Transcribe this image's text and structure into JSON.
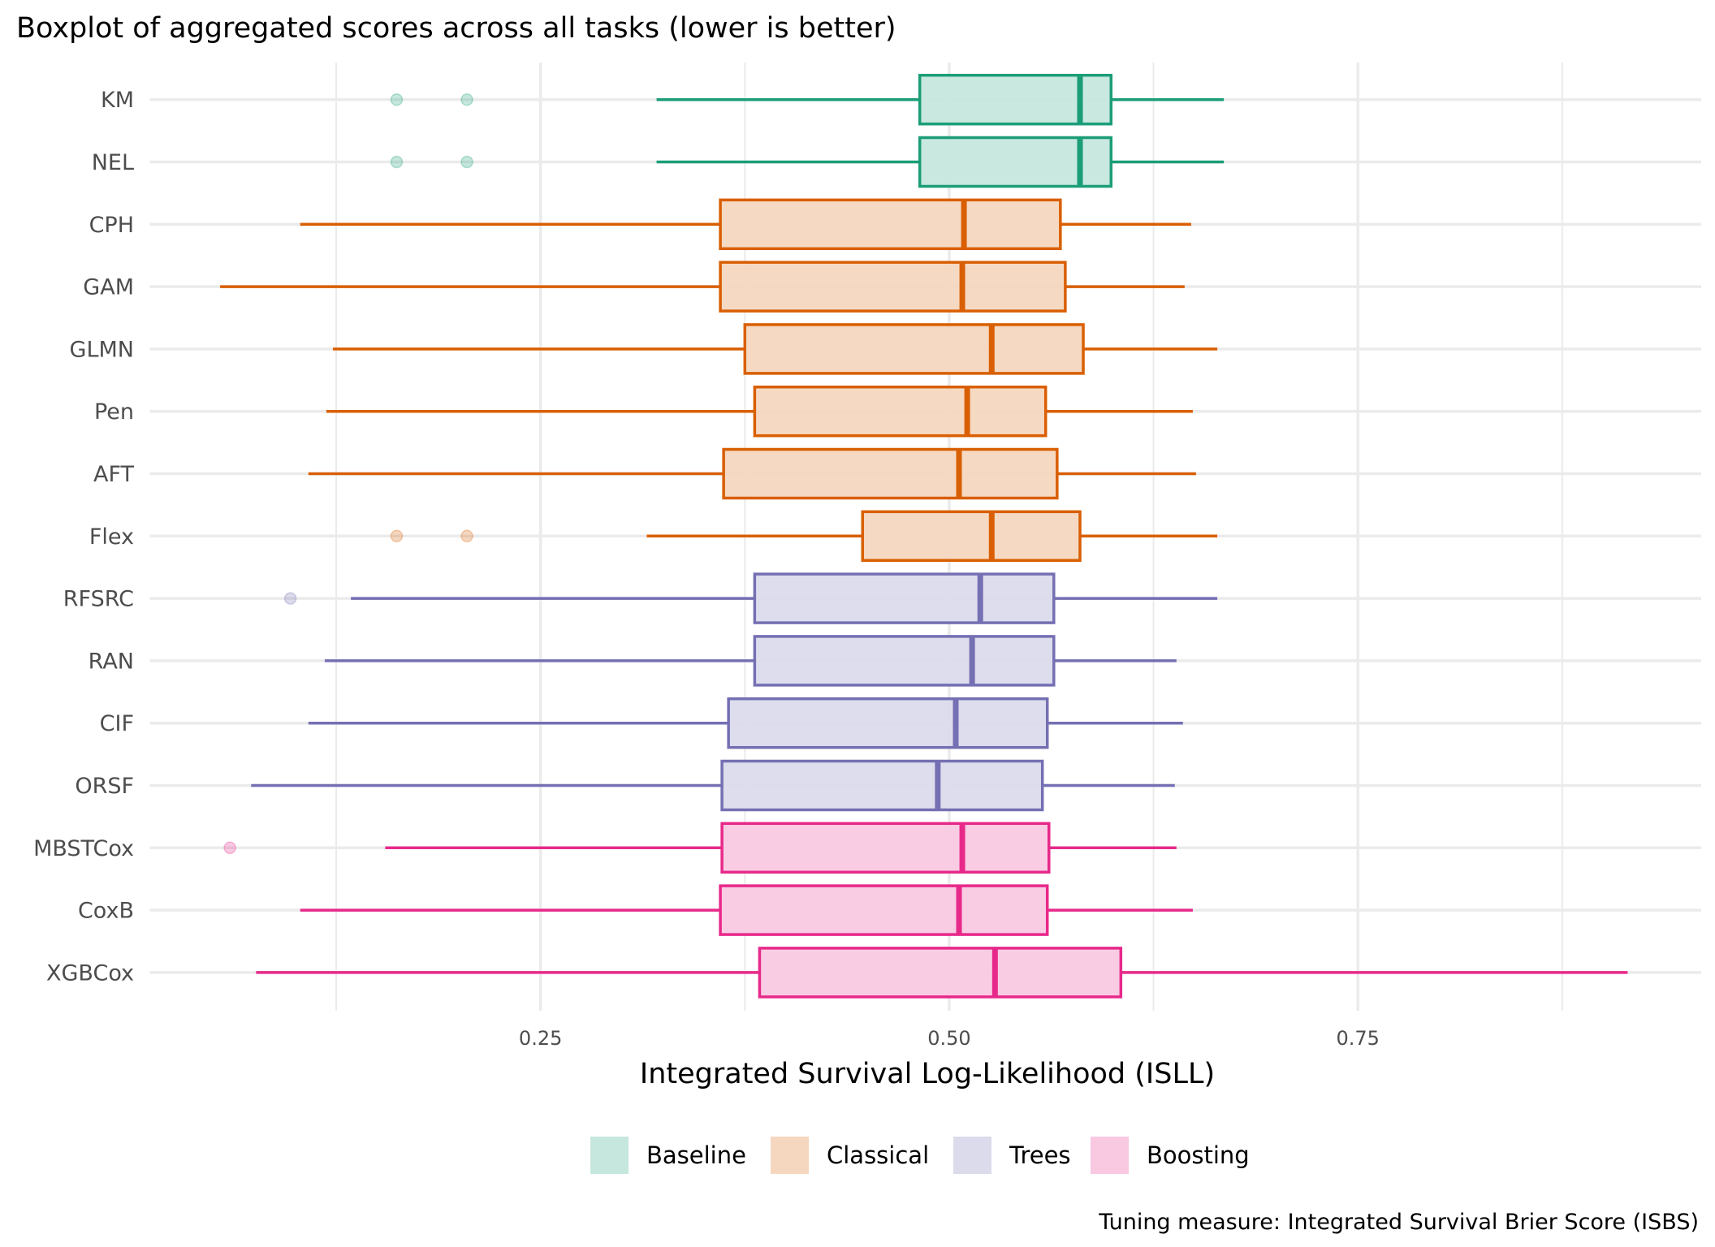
{
  "chart_data": {
    "type": "boxplot",
    "orientation": "horizontal",
    "title": "Boxplot of aggregated scores across all tasks (lower is better)",
    "xlabel": "Integrated Survival Log-Likelihood (ISLL)",
    "ylabel": "",
    "caption": "Tuning measure: Integrated Survival Brier Score (ISBS)",
    "xlim": [
      0.011,
      0.96
    ],
    "x_ticks": [
      0.25,
      0.5,
      0.75
    ],
    "x_tick_labels": [
      "0.25",
      "0.50",
      "0.75"
    ],
    "x_minor_ticks": [
      0.125,
      0.375,
      0.625,
      0.875
    ],
    "grid": true,
    "legend": {
      "position": "bottom",
      "entries": [
        {
          "label": "Baseline",
          "group": "Baseline"
        },
        {
          "label": "Classical",
          "group": "Classical"
        },
        {
          "label": "Trees",
          "group": "Trees"
        },
        {
          "label": "Boosting",
          "group": "Boosting"
        }
      ]
    },
    "groups": {
      "Baseline": {
        "line": "#1B9E77",
        "fill": "#C6E7DD",
        "point": "#1B9E77"
      },
      "Classical": {
        "line": "#D95F02",
        "fill": "#F5D7C0",
        "point": "#D95F02"
      },
      "Trees": {
        "line": "#7570B3",
        "fill": "#DCDBEC",
        "point": "#7570B3"
      },
      "Boosting": {
        "line": "#E7298A",
        "fill": "#F9C9E2",
        "point": "#E7298A"
      }
    },
    "categories": [
      "KM",
      "NEL",
      "CPH",
      "GAM",
      "GLMN",
      "Pen",
      "AFT",
      "Flex",
      "RFSRC",
      "RAN",
      "CIF",
      "ORSF",
      "MBSTCox",
      "CoxB",
      "XGBCox"
    ],
    "boxes": [
      {
        "name": "KM",
        "group": "Baseline",
        "whisker_low": 0.321,
        "q1": 0.482,
        "median": 0.58,
        "q3": 0.599,
        "whisker_high": 0.668,
        "outliers": [
          0.162,
          0.205
        ]
      },
      {
        "name": "NEL",
        "group": "Baseline",
        "whisker_low": 0.321,
        "q1": 0.482,
        "median": 0.58,
        "q3": 0.599,
        "whisker_high": 0.668,
        "outliers": [
          0.162,
          0.205
        ]
      },
      {
        "name": "CPH",
        "group": "Classical",
        "whisker_low": 0.103,
        "q1": 0.36,
        "median": 0.509,
        "q3": 0.568,
        "whisker_high": 0.648,
        "outliers": []
      },
      {
        "name": "GAM",
        "group": "Classical",
        "whisker_low": 0.054,
        "q1": 0.36,
        "median": 0.508,
        "q3": 0.571,
        "whisker_high": 0.644,
        "outliers": []
      },
      {
        "name": "GLMN",
        "group": "Classical",
        "whisker_low": 0.123,
        "q1": 0.375,
        "median": 0.526,
        "q3": 0.582,
        "whisker_high": 0.664,
        "outliers": []
      },
      {
        "name": "Pen",
        "group": "Classical",
        "whisker_low": 0.119,
        "q1": 0.381,
        "median": 0.511,
        "q3": 0.559,
        "whisker_high": 0.649,
        "outliers": []
      },
      {
        "name": "AFT",
        "group": "Classical",
        "whisker_low": 0.108,
        "q1": 0.362,
        "median": 0.506,
        "q3": 0.566,
        "whisker_high": 0.651,
        "outliers": []
      },
      {
        "name": "Flex",
        "group": "Classical",
        "whisker_low": 0.315,
        "q1": 0.447,
        "median": 0.526,
        "q3": 0.58,
        "whisker_high": 0.664,
        "outliers": [
          0.162,
          0.205
        ]
      },
      {
        "name": "RFSRC",
        "group": "Trees",
        "whisker_low": 0.134,
        "q1": 0.381,
        "median": 0.519,
        "q3": 0.564,
        "whisker_high": 0.664,
        "outliers": [
          0.097
        ]
      },
      {
        "name": "RAN",
        "group": "Trees",
        "whisker_low": 0.118,
        "q1": 0.381,
        "median": 0.514,
        "q3": 0.564,
        "whisker_high": 0.639,
        "outliers": []
      },
      {
        "name": "CIF",
        "group": "Trees",
        "whisker_low": 0.108,
        "q1": 0.365,
        "median": 0.504,
        "q3": 0.56,
        "whisker_high": 0.643,
        "outliers": []
      },
      {
        "name": "ORSF",
        "group": "Trees",
        "whisker_low": 0.073,
        "q1": 0.361,
        "median": 0.493,
        "q3": 0.557,
        "whisker_high": 0.638,
        "outliers": []
      },
      {
        "name": "MBSTCox",
        "group": "Boosting",
        "whisker_low": 0.155,
        "q1": 0.361,
        "median": 0.508,
        "q3": 0.561,
        "whisker_high": 0.639,
        "outliers": [
          0.06
        ]
      },
      {
        "name": "CoxB",
        "group": "Boosting",
        "whisker_low": 0.103,
        "q1": 0.36,
        "median": 0.506,
        "q3": 0.56,
        "whisker_high": 0.649,
        "outliers": []
      },
      {
        "name": "XGBCox",
        "group": "Boosting",
        "whisker_low": 0.076,
        "q1": 0.384,
        "median": 0.528,
        "q3": 0.605,
        "whisker_high": 0.915,
        "outliers": []
      }
    ]
  }
}
